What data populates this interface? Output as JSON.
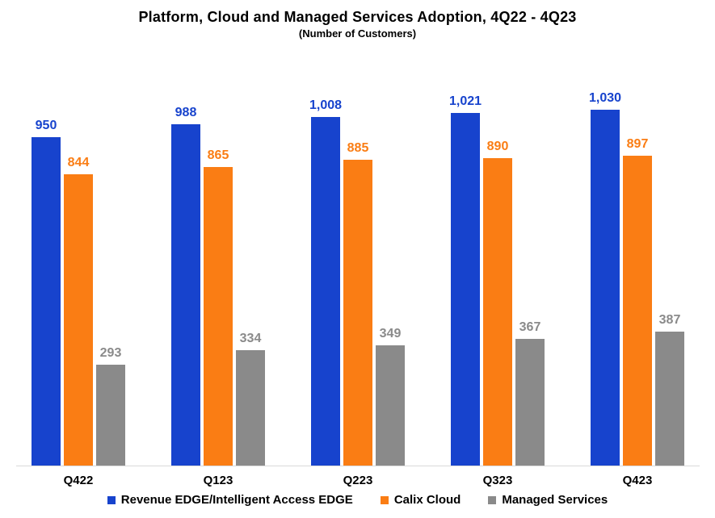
{
  "title": "Platform, Cloud and Managed Services Adoption, 4Q22 - 4Q23",
  "subtitle": "(Number of Customers)",
  "chart_data": {
    "type": "bar",
    "title": "Platform, Cloud and Managed Services Adoption, 4Q22 - 4Q23",
    "subtitle": "(Number of Customers)",
    "categories": [
      "Q422",
      "Q123",
      "Q223",
      "Q323",
      "Q423"
    ],
    "series": [
      {
        "name": "Revenue EDGE/Intelligent Access EDGE",
        "color": "#1743CD",
        "values": [
          950,
          988,
          1008,
          1021,
          1030
        ],
        "labels": [
          "950",
          "988",
          "1,008",
          "1,021",
          "1,030"
        ]
      },
      {
        "name": "Calix Cloud",
        "color": "#FA7D14",
        "values": [
          844,
          865,
          885,
          890,
          897
        ],
        "labels": [
          "844",
          "865",
          "885",
          "890",
          "897"
        ]
      },
      {
        "name": "Managed Services",
        "color": "#8A8A8A",
        "values": [
          293,
          334,
          349,
          367,
          387
        ],
        "labels": [
          "293",
          "334",
          "349",
          "367",
          "387"
        ]
      }
    ],
    "xlabel": "",
    "ylabel": "",
    "ylim": [
      0,
      1100
    ],
    "grid": false,
    "data_labels": true,
    "legend_position": "bottom",
    "axis_line_color": "#D9D9D9",
    "background_color": "#FFFFFF"
  }
}
